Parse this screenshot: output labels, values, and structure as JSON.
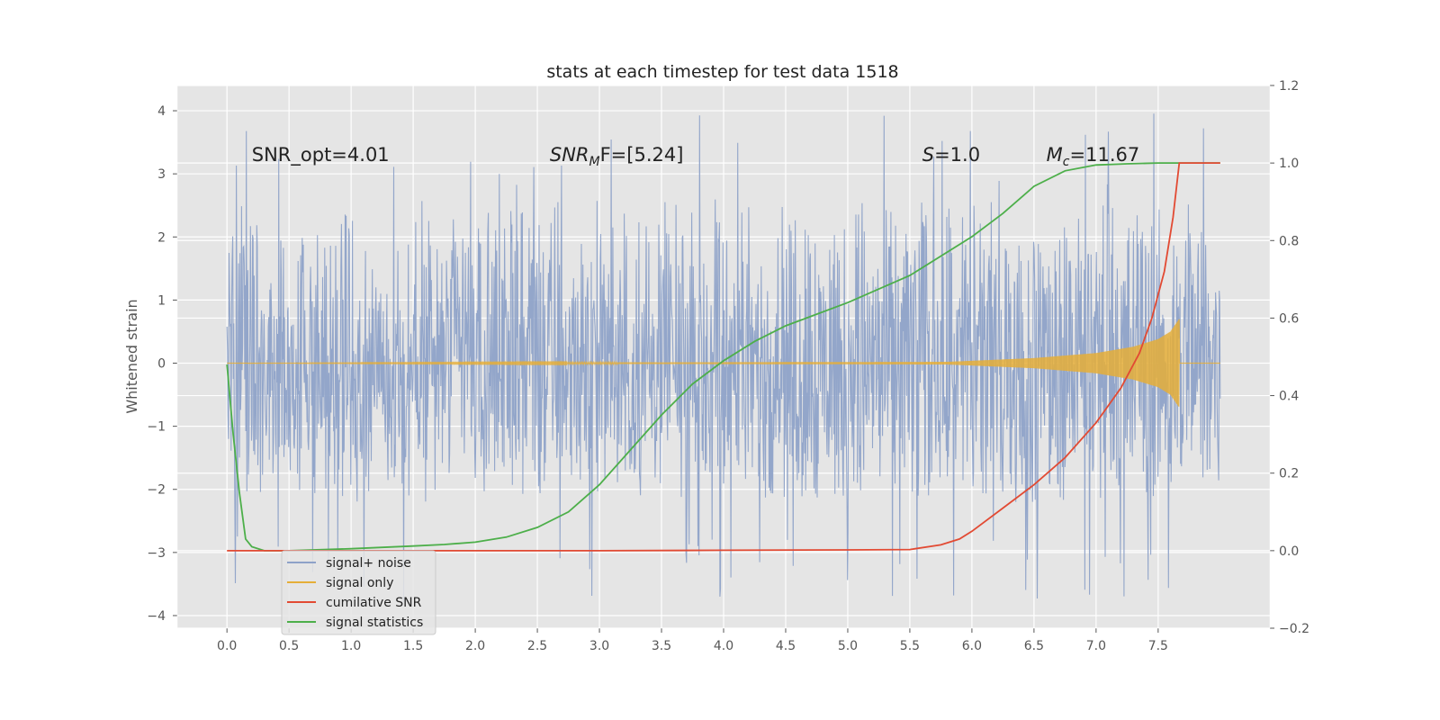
{
  "chart_data": {
    "type": "line",
    "title": "stats at each timestep for test data 1518",
    "ylabel": "Whitened strain",
    "xlabel": "",
    "xlim": [
      -0.4,
      8.4
    ],
    "ylim": [
      -4.2,
      4.4
    ],
    "y2lim": [
      -0.2,
      1.2
    ],
    "grid": true,
    "legend_position": "lower-left",
    "x_ticks": [
      "0.0",
      "0.5",
      "1.0",
      "1.5",
      "2.0",
      "2.5",
      "3.0",
      "3.5",
      "4.0",
      "4.5",
      "5.0",
      "5.5",
      "6.0",
      "6.5",
      "7.0",
      "7.5"
    ],
    "y_ticks": [
      "−4",
      "−3",
      "−2",
      "−1",
      "0",
      "1",
      "2",
      "3",
      "4"
    ],
    "y2_ticks": [
      "−0.2",
      "0.0",
      "0.2",
      "0.4",
      "0.6",
      "0.8",
      "1.0",
      "1.2"
    ],
    "annotations": [
      {
        "id": "snr-opt",
        "text": "SNR_opt=4.01",
        "x": 0.2,
        "y": 3.2
      },
      {
        "id": "snr-mf",
        "base": "SNR",
        "sub": "M",
        "rest": "F=[5.24]",
        "x": 2.6,
        "y": 3.2
      },
      {
        "id": "s",
        "base": "S",
        "rest": "=1.0",
        "x": 5.6,
        "y": 3.2
      },
      {
        "id": "mc",
        "base": "M",
        "sub": "c",
        "rest": "=11.67",
        "x": 6.6,
        "y": 3.2
      }
    ],
    "series": [
      {
        "name": "signal+ noise",
        "color": "#8ea2c8",
        "axis": "left",
        "description": "noisy whitened strain, roughly between -2.2 and 2.6 with spikes up to 4.0 and down to -3.8",
        "x_range": [
          0.0,
          8.0
        ],
        "envelope": [
          -2.2,
          2.6
        ],
        "extremes": [
          -3.8,
          4.0
        ]
      },
      {
        "name": "signal only",
        "color": "#e5ae38",
        "axis": "left",
        "x_range": [
          0.0,
          8.0
        ],
        "chirp_end": 7.67,
        "amplitude_points": [
          [
            0.0,
            0.0
          ],
          [
            5.8,
            0.02
          ],
          [
            6.5,
            0.08
          ],
          [
            7.0,
            0.16
          ],
          [
            7.3,
            0.26
          ],
          [
            7.5,
            0.38
          ],
          [
            7.6,
            0.5
          ],
          [
            7.67,
            0.7
          ]
        ]
      },
      {
        "name": "cumilative SNR",
        "color": "#e24a33",
        "axis": "right",
        "x": [
          0.0,
          1.0,
          2.0,
          3.0,
          4.0,
          5.0,
          5.5,
          5.75,
          5.9,
          6.0,
          6.25,
          6.5,
          6.75,
          7.0,
          7.2,
          7.35,
          7.45,
          7.55,
          7.62,
          7.67,
          8.0
        ],
        "values": [
          0.0,
          0.0,
          0.0,
          0.0,
          0.001,
          0.002,
          0.003,
          0.015,
          0.03,
          0.05,
          0.11,
          0.17,
          0.24,
          0.33,
          0.42,
          0.51,
          0.6,
          0.72,
          0.86,
          1.0,
          1.0
        ]
      },
      {
        "name": "signal statistics",
        "color": "#348abd",
        "stroke": "#4daf4a",
        "axis": "right",
        "x": [
          0.0,
          0.05,
          0.1,
          0.15,
          0.2,
          0.3,
          0.5,
          1.0,
          1.5,
          1.75,
          2.0,
          2.25,
          2.5,
          2.75,
          3.0,
          3.25,
          3.5,
          3.75,
          4.0,
          4.25,
          4.5,
          5.0,
          5.5,
          6.0,
          6.25,
          6.5,
          6.75,
          7.0,
          7.25,
          7.5,
          7.75,
          8.0
        ],
        "values": [
          0.48,
          0.3,
          0.15,
          0.03,
          0.01,
          0.0,
          0.0,
          0.005,
          0.012,
          0.016,
          0.022,
          0.035,
          0.06,
          0.1,
          0.17,
          0.26,
          0.35,
          0.43,
          0.49,
          0.54,
          0.58,
          0.64,
          0.71,
          0.81,
          0.87,
          0.94,
          0.98,
          0.995,
          0.998,
          1.0,
          1.0,
          1.0
        ]
      }
    ]
  }
}
